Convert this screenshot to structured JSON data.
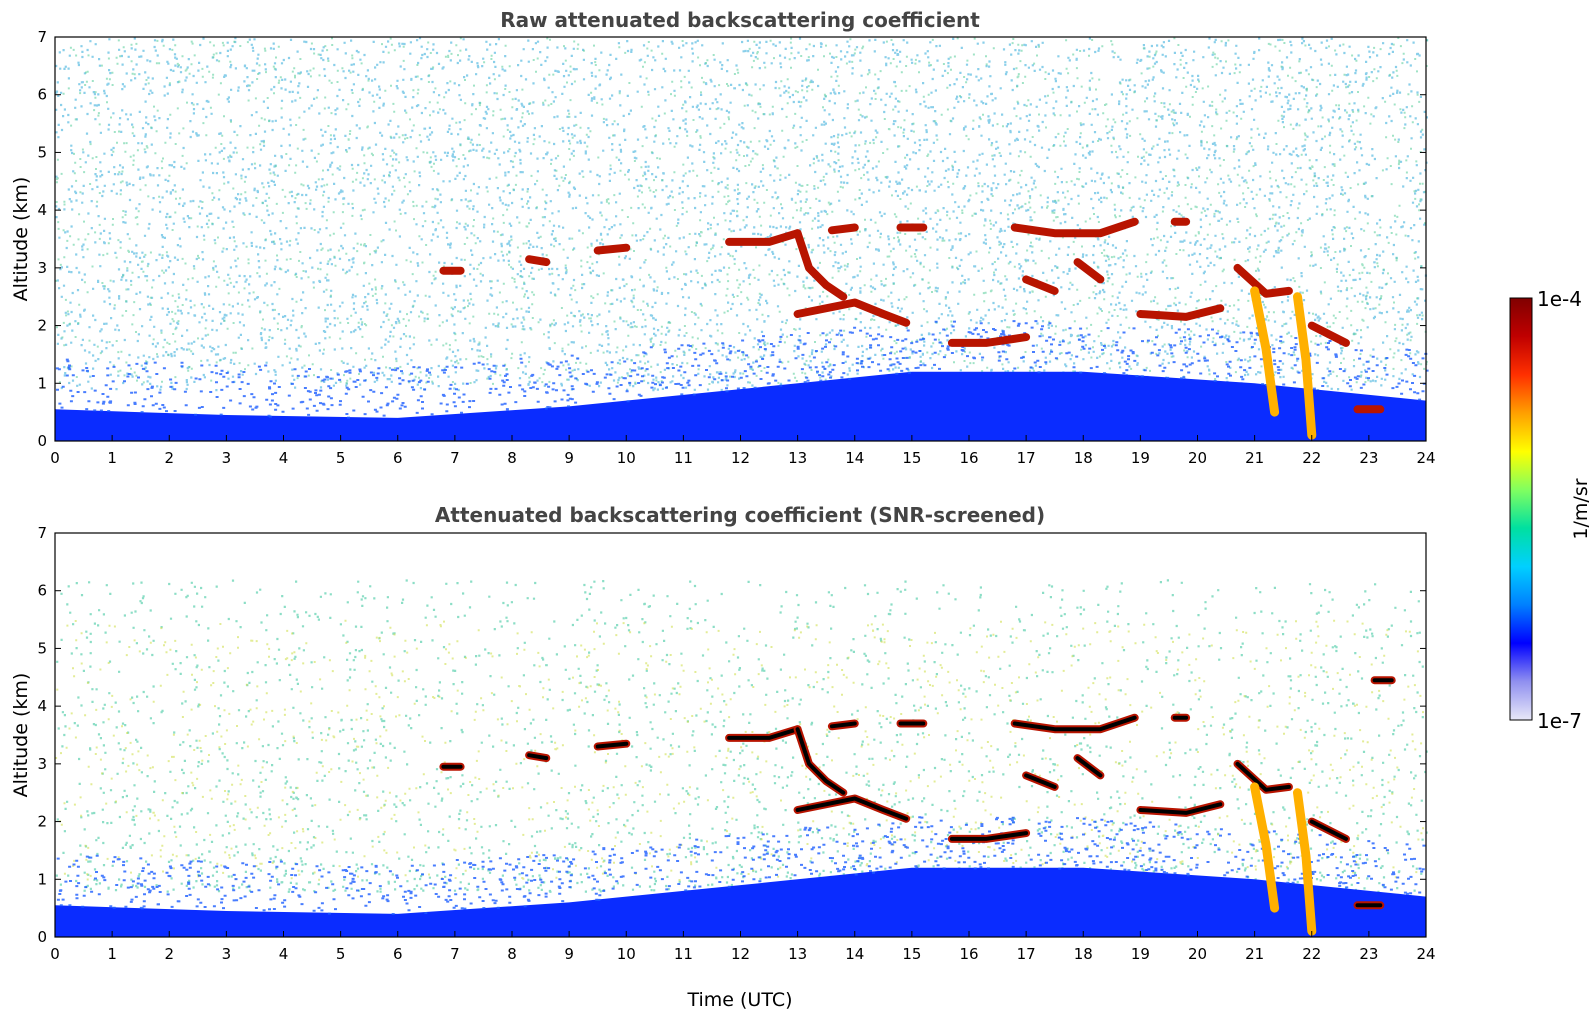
{
  "chart_data": [
    {
      "type": "heatmap",
      "title": "Raw attenuated backscattering coefficient",
      "xlabel": "",
      "ylabel": "Altitude (km)",
      "xlim": [
        0,
        24
      ],
      "ylim": [
        0,
        7
      ],
      "xticks": [
        "0",
        "1",
        "2",
        "3",
        "4",
        "5",
        "6",
        "7",
        "8",
        "9",
        "10",
        "11",
        "12",
        "13",
        "14",
        "15",
        "16",
        "17",
        "18",
        "19",
        "20",
        "21",
        "22",
        "23",
        "24"
      ],
      "yticks": [
        "0",
        "1",
        "2",
        "3",
        "4",
        "5",
        "6",
        "7"
      ],
      "background_noise": "dense",
      "features": [
        {
          "kind": "boundary-layer",
          "x": [
            0,
            24
          ],
          "top_km": [
            0.55,
            0.45,
            0.4,
            0.6,
            0.9,
            1.2,
            1.2,
            1.0,
            0.7
          ]
        },
        {
          "kind": "cloud",
          "points": [
            [
              6.8,
              2.95
            ],
            [
              7.1,
              2.95
            ]
          ]
        },
        {
          "kind": "cloud",
          "points": [
            [
              8.3,
              3.15
            ],
            [
              8.6,
              3.1
            ]
          ]
        },
        {
          "kind": "cloud",
          "points": [
            [
              9.5,
              3.3
            ],
            [
              10.0,
              3.35
            ]
          ]
        },
        {
          "kind": "cloud",
          "points": [
            [
              11.8,
              3.45
            ],
            [
              12.5,
              3.45
            ],
            [
              13.0,
              3.6
            ]
          ]
        },
        {
          "kind": "cloud",
          "points": [
            [
              13.0,
              3.6
            ],
            [
              13.2,
              3.0
            ],
            [
              13.5,
              2.7
            ],
            [
              13.8,
              2.5
            ]
          ]
        },
        {
          "kind": "cloud",
          "points": [
            [
              13.0,
              2.2
            ],
            [
              14.0,
              2.4
            ],
            [
              14.5,
              2.2
            ],
            [
              14.9,
              2.05
            ]
          ]
        },
        {
          "kind": "cloud",
          "points": [
            [
              13.6,
              3.65
            ],
            [
              14.0,
              3.7
            ]
          ]
        },
        {
          "kind": "cloud",
          "points": [
            [
              14.8,
              3.7
            ],
            [
              15.2,
              3.7
            ]
          ]
        },
        {
          "kind": "cloud",
          "points": [
            [
              15.7,
              1.7
            ],
            [
              16.3,
              1.7
            ],
            [
              17.0,
              1.8
            ]
          ]
        },
        {
          "kind": "cloud",
          "points": [
            [
              17.0,
              2.8
            ],
            [
              17.5,
              2.6
            ]
          ]
        },
        {
          "kind": "cloud",
          "points": [
            [
              16.8,
              3.7
            ],
            [
              17.5,
              3.6
            ],
            [
              18.3,
              3.6
            ],
            [
              18.9,
              3.8
            ]
          ]
        },
        {
          "kind": "cloud",
          "points": [
            [
              17.9,
              3.1
            ],
            [
              18.3,
              2.8
            ]
          ]
        },
        {
          "kind": "cloud",
          "points": [
            [
              19.0,
              2.2
            ],
            [
              19.8,
              2.15
            ],
            [
              20.4,
              2.3
            ]
          ]
        },
        {
          "kind": "cloud",
          "points": [
            [
              19.6,
              3.8
            ],
            [
              19.8,
              3.8
            ]
          ]
        },
        {
          "kind": "cloud",
          "points": [
            [
              20.7,
              3.0
            ],
            [
              21.2,
              2.55
            ],
            [
              21.6,
              2.6
            ]
          ]
        },
        {
          "kind": "fall-streak",
          "points": [
            [
              21.0,
              2.6
            ],
            [
              21.2,
              1.6
            ],
            [
              21.35,
              0.5
            ]
          ]
        },
        {
          "kind": "fall-streak",
          "points": [
            [
              21.75,
              2.5
            ],
            [
              21.9,
              1.4
            ],
            [
              22.0,
              0.1
            ]
          ]
        },
        {
          "kind": "cloud",
          "points": [
            [
              22.0,
              2.0
            ],
            [
              22.6,
              1.7
            ]
          ]
        },
        {
          "kind": "cloud",
          "points": [
            [
              22.8,
              0.55
            ],
            [
              23.2,
              0.55
            ]
          ]
        }
      ]
    },
    {
      "type": "heatmap",
      "title": "Attenuated backscattering coefficient (SNR-screened)",
      "xlabel": "Time (UTC)",
      "ylabel": "Altitude (km)",
      "xlim": [
        0,
        24
      ],
      "ylim": [
        0,
        7
      ],
      "xticks": [
        "0",
        "1",
        "2",
        "3",
        "4",
        "5",
        "6",
        "7",
        "8",
        "9",
        "10",
        "11",
        "12",
        "13",
        "14",
        "15",
        "16",
        "17",
        "18",
        "19",
        "20",
        "21",
        "22",
        "23",
        "24"
      ],
      "yticks": [
        "0",
        "1",
        "2",
        "3",
        "4",
        "5",
        "6",
        "7"
      ],
      "background_noise": "sparse",
      "features": [
        {
          "kind": "boundary-layer",
          "x": [
            0,
            24
          ],
          "top_km": [
            0.55,
            0.45,
            0.4,
            0.6,
            0.9,
            1.2,
            1.2,
            1.0,
            0.7
          ]
        },
        {
          "kind": "cloud",
          "points": [
            [
              6.8,
              2.95
            ],
            [
              7.1,
              2.95
            ]
          ]
        },
        {
          "kind": "cloud",
          "points": [
            [
              8.3,
              3.15
            ],
            [
              8.6,
              3.1
            ]
          ]
        },
        {
          "kind": "cloud",
          "points": [
            [
              9.5,
              3.3
            ],
            [
              10.0,
              3.35
            ]
          ]
        },
        {
          "kind": "cloud",
          "points": [
            [
              11.8,
              3.45
            ],
            [
              12.5,
              3.45
            ],
            [
              13.0,
              3.6
            ]
          ]
        },
        {
          "kind": "cloud",
          "points": [
            [
              13.0,
              3.6
            ],
            [
              13.2,
              3.0
            ],
            [
              13.5,
              2.7
            ],
            [
              13.8,
              2.5
            ]
          ]
        },
        {
          "kind": "cloud",
          "points": [
            [
              13.0,
              2.2
            ],
            [
              14.0,
              2.4
            ],
            [
              14.5,
              2.2
            ],
            [
              14.9,
              2.05
            ]
          ]
        },
        {
          "kind": "cloud",
          "points": [
            [
              13.6,
              3.65
            ],
            [
              14.0,
              3.7
            ]
          ]
        },
        {
          "kind": "cloud",
          "points": [
            [
              14.8,
              3.7
            ],
            [
              15.2,
              3.7
            ]
          ]
        },
        {
          "kind": "cloud",
          "points": [
            [
              15.7,
              1.7
            ],
            [
              16.3,
              1.7
            ],
            [
              17.0,
              1.8
            ]
          ]
        },
        {
          "kind": "cloud",
          "points": [
            [
              17.0,
              2.8
            ],
            [
              17.5,
              2.6
            ]
          ]
        },
        {
          "kind": "cloud",
          "points": [
            [
              16.8,
              3.7
            ],
            [
              17.5,
              3.6
            ],
            [
              18.3,
              3.6
            ],
            [
              18.9,
              3.8
            ]
          ]
        },
        {
          "kind": "cloud",
          "points": [
            [
              17.9,
              3.1
            ],
            [
              18.3,
              2.8
            ]
          ]
        },
        {
          "kind": "cloud",
          "points": [
            [
              19.0,
              2.2
            ],
            [
              19.8,
              2.15
            ],
            [
              20.4,
              2.3
            ]
          ]
        },
        {
          "kind": "cloud",
          "points": [
            [
              19.6,
              3.8
            ],
            [
              19.8,
              3.8
            ]
          ]
        },
        {
          "kind": "cloud",
          "points": [
            [
              20.7,
              3.0
            ],
            [
              21.2,
              2.55
            ],
            [
              21.6,
              2.6
            ]
          ]
        },
        {
          "kind": "fall-streak",
          "points": [
            [
              21.0,
              2.6
            ],
            [
              21.2,
              1.6
            ],
            [
              21.35,
              0.5
            ]
          ]
        },
        {
          "kind": "fall-streak",
          "points": [
            [
              21.75,
              2.5
            ],
            [
              21.9,
              1.4
            ],
            [
              22.0,
              0.1
            ]
          ]
        },
        {
          "kind": "cloud",
          "points": [
            [
              22.0,
              2.0
            ],
            [
              22.6,
              1.7
            ]
          ]
        },
        {
          "kind": "cloud",
          "points": [
            [
              22.8,
              0.55
            ],
            [
              23.2,
              0.55
            ]
          ]
        },
        {
          "kind": "cloud",
          "points": [
            [
              23.1,
              4.45
            ],
            [
              23.4,
              4.45
            ]
          ]
        }
      ]
    }
  ],
  "colorbar": {
    "label": "1/m/sr",
    "min_label": "1e-7",
    "max_label": "1e-4",
    "colors": [
      "#e8e8f8",
      "#9090f0",
      "#0000ff",
      "#0080ff",
      "#00d0ff",
      "#00e0a0",
      "#80ff60",
      "#ffff00",
      "#ffa000",
      "#ff3000",
      "#c00000",
      "#800000"
    ]
  },
  "noise_color": "#2aa8d8",
  "cloud_color": "#b81400",
  "cloud_core_color": "#000000",
  "boundary_color": "#0a2cff"
}
